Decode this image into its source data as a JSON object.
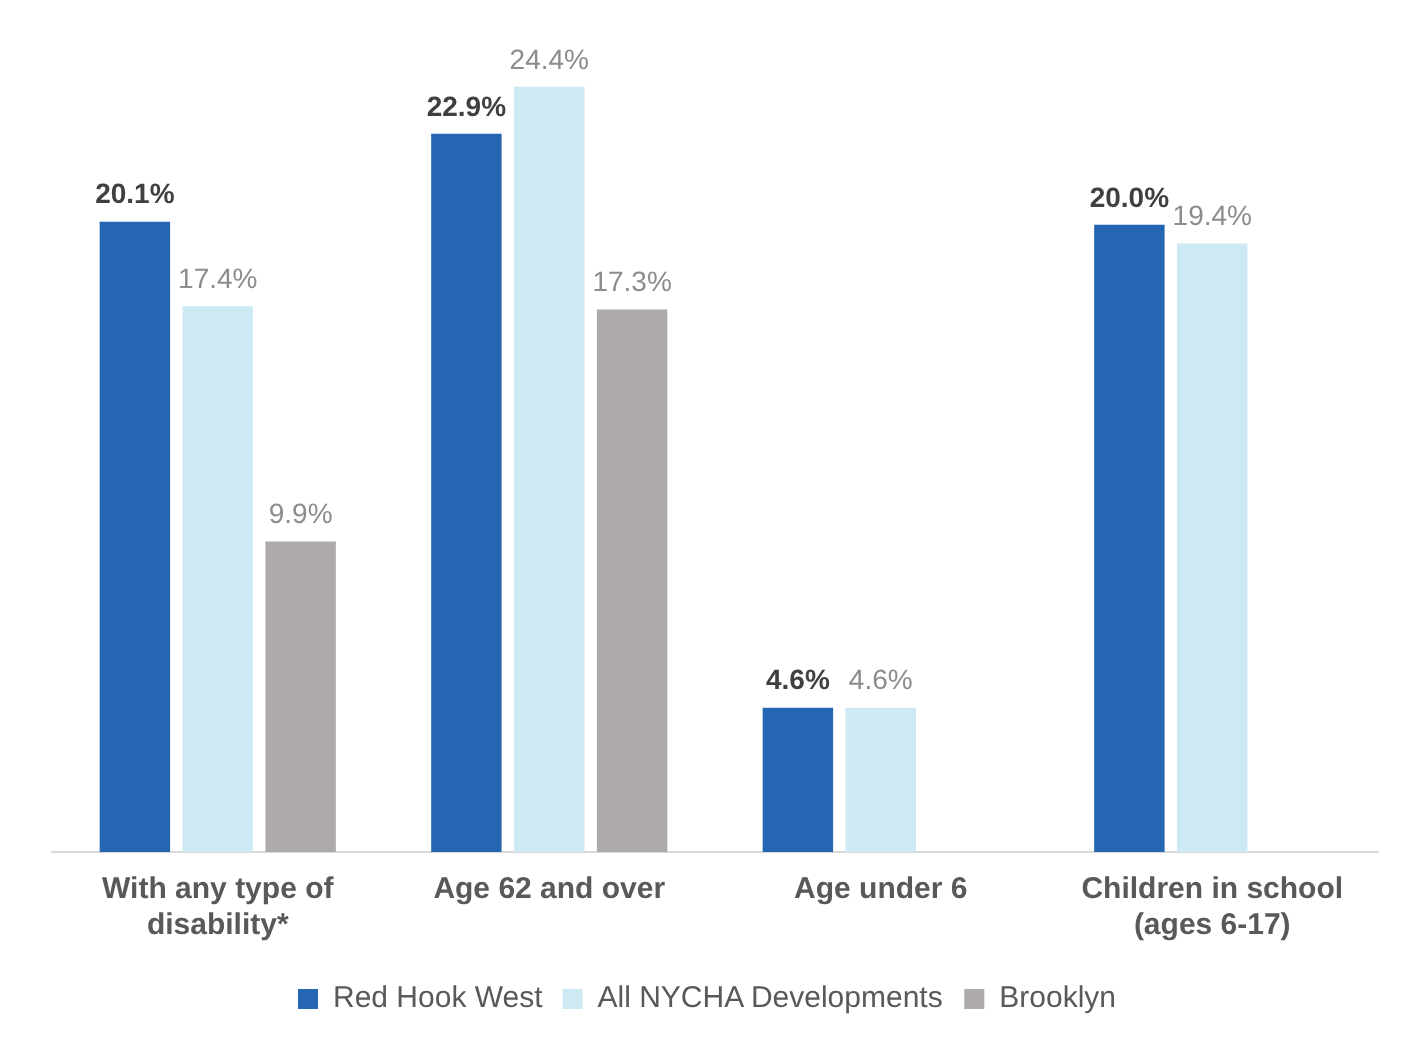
{
  "chart_data": {
    "type": "bar",
    "categories": [
      "With any type of disability*",
      "Age 62 and over",
      "Age under 6",
      "Children in school (ages 6-17)"
    ],
    "series": [
      {
        "name": "Red Hook West",
        "color": "#2466b2",
        "values": [
          20.1,
          22.9,
          4.6,
          20.0
        ],
        "value_labels": [
          "20.1%",
          "22.9%",
          "4.6%",
          "20.0%"
        ]
      },
      {
        "name": "All NYCHA Developments",
        "color": "#cdeaf4",
        "values": [
          17.4,
          24.4,
          4.6,
          19.4
        ],
        "value_labels": [
          "17.4%",
          "24.4%",
          "4.6%",
          "19.4%"
        ]
      },
      {
        "name": "Brooklyn",
        "color": "#aeaaaa",
        "values": [
          9.9,
          17.3,
          null,
          null
        ],
        "value_labels": [
          "9.9%",
          "17.3%",
          null,
          null
        ]
      }
    ],
    "tick_labels": "x",
    "grid": false,
    "legend": "bottom"
  }
}
